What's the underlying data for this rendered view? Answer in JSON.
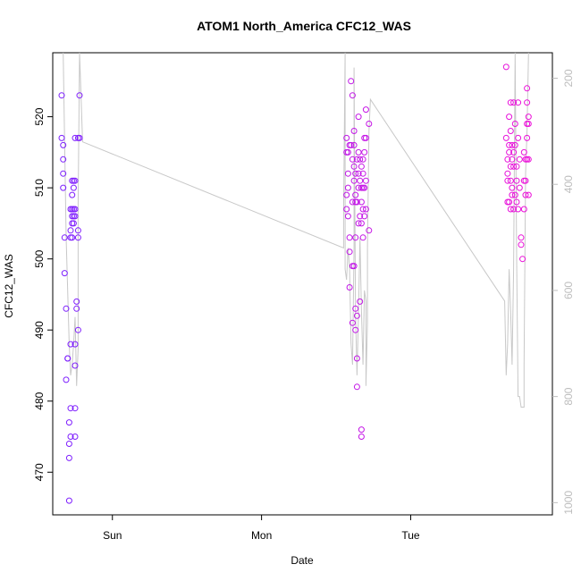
{
  "chart_data": {
    "type": "scatter",
    "title": "ATOM1 North_America CFC12_WAS",
    "xlabel": "Date",
    "ylabel": "CFC12_WAS",
    "x_ticks": [
      {
        "label": "Sun",
        "day": 1
      },
      {
        "label": "Mon",
        "day": 2
      },
      {
        "label": "Tue",
        "day": 3
      }
    ],
    "xlim_days": [
      0.6,
      3.95
    ],
    "y_ticks": [
      470,
      480,
      490,
      500,
      510,
      520
    ],
    "ylim": [
      464,
      529
    ],
    "y2_label": "",
    "y2_ticks": [
      200,
      400,
      600,
      800,
      1000
    ],
    "y2lim_top_to_bottom": [
      152,
      1023
    ],
    "grid": false,
    "legend": "none",
    "colors": {
      "early_points": "#7a1fff",
      "late_points": "#ee10d8",
      "pressure_line": "#c8c8c8",
      "axis": "#000000",
      "secondary_axis": "#bdbdbd"
    },
    "series": [
      {
        "points_day_value": [
          [
            0.66,
            523
          ],
          [
            0.66,
            517
          ],
          [
            0.67,
            516
          ],
          [
            0.67,
            514
          ],
          [
            0.67,
            512
          ],
          [
            0.67,
            510
          ],
          [
            0.68,
            503
          ],
          [
            0.68,
            498
          ],
          [
            0.69,
            493
          ],
          [
            0.69,
            483
          ],
          [
            0.7,
            486
          ],
          [
            0.7,
            486
          ],
          [
            0.71,
            477
          ],
          [
            0.71,
            474
          ],
          [
            0.71,
            472
          ],
          [
            0.71,
            466
          ],
          [
            0.72,
            507
          ],
          [
            0.72,
            504
          ],
          [
            0.72,
            503
          ],
          [
            0.72,
            488
          ],
          [
            0.72,
            479
          ],
          [
            0.72,
            475
          ],
          [
            0.73,
            511
          ],
          [
            0.73,
            509
          ],
          [
            0.73,
            507
          ],
          [
            0.73,
            506
          ],
          [
            0.73,
            505
          ],
          [
            0.73,
            503
          ],
          [
            0.74,
            507
          ],
          [
            0.74,
            506
          ],
          [
            0.74,
            505
          ],
          [
            0.74,
            510
          ],
          [
            0.74,
            511
          ],
          [
            0.75,
            517
          ],
          [
            0.75,
            511
          ],
          [
            0.75,
            506
          ],
          [
            0.75,
            507
          ],
          [
            0.75,
            488
          ],
          [
            0.75,
            485
          ],
          [
            0.75,
            479
          ],
          [
            0.75,
            475
          ],
          [
            0.76,
            493
          ],
          [
            0.76,
            494
          ],
          [
            0.77,
            517
          ],
          [
            0.77,
            504
          ],
          [
            0.77,
            503
          ],
          [
            0.77,
            490
          ],
          [
            0.78,
            523
          ],
          [
            0.78,
            517
          ]
        ]
      },
      {
        "points_day_value": [
          [
            2.57,
            515
          ],
          [
            2.57,
            517
          ],
          [
            2.57,
            509
          ],
          [
            2.57,
            507
          ],
          [
            2.58,
            515
          ],
          [
            2.58,
            512
          ],
          [
            2.58,
            510
          ],
          [
            2.58,
            506
          ],
          [
            2.59,
            516
          ],
          [
            2.59,
            503
          ],
          [
            2.59,
            501
          ],
          [
            2.59,
            496
          ],
          [
            2.6,
            525
          ],
          [
            2.6,
            516
          ],
          [
            2.61,
            523
          ],
          [
            2.61,
            514
          ],
          [
            2.61,
            508
          ],
          [
            2.61,
            499
          ],
          [
            2.61,
            491
          ],
          [
            2.62,
            518
          ],
          [
            2.62,
            516
          ],
          [
            2.62,
            513
          ],
          [
            2.62,
            511
          ],
          [
            2.62,
            499
          ],
          [
            2.63,
            509
          ],
          [
            2.63,
            512
          ],
          [
            2.63,
            508
          ],
          [
            2.63,
            503
          ],
          [
            2.63,
            493
          ],
          [
            2.63,
            490
          ],
          [
            2.64,
            514
          ],
          [
            2.64,
            508
          ],
          [
            2.64,
            486
          ],
          [
            2.64,
            482
          ],
          [
            2.64,
            492
          ],
          [
            2.65,
            520
          ],
          [
            2.65,
            515
          ],
          [
            2.65,
            512
          ],
          [
            2.65,
            510
          ],
          [
            2.65,
            505
          ],
          [
            2.66,
            514
          ],
          [
            2.66,
            511
          ],
          [
            2.66,
            506
          ],
          [
            2.66,
            494
          ],
          [
            2.67,
            476
          ],
          [
            2.67,
            475
          ],
          [
            2.67,
            513
          ],
          [
            2.67,
            510
          ],
          [
            2.67,
            508
          ],
          [
            2.67,
            505
          ],
          [
            2.68,
            514
          ],
          [
            2.68,
            512
          ],
          [
            2.68,
            510
          ],
          [
            2.68,
            507
          ],
          [
            2.68,
            503
          ],
          [
            2.69,
            515
          ],
          [
            2.69,
            510
          ],
          [
            2.69,
            506
          ],
          [
            2.69,
            517
          ],
          [
            2.7,
            521
          ],
          [
            2.7,
            517
          ],
          [
            2.7,
            507
          ],
          [
            2.7,
            511
          ],
          [
            2.72,
            519
          ],
          [
            2.72,
            504
          ],
          [
            3.64,
            527
          ],
          [
            3.64,
            517
          ],
          [
            3.65,
            514
          ],
          [
            3.65,
            512
          ],
          [
            3.65,
            511
          ],
          [
            3.65,
            508
          ],
          [
            3.66,
            520
          ],
          [
            3.66,
            516
          ],
          [
            3.66,
            515
          ],
          [
            3.66,
            508
          ],
          [
            3.67,
            522
          ],
          [
            3.67,
            518
          ],
          [
            3.67,
            513
          ],
          [
            3.67,
            511
          ],
          [
            3.67,
            507
          ],
          [
            3.68,
            516
          ],
          [
            3.68,
            514
          ],
          [
            3.68,
            510
          ],
          [
            3.68,
            509
          ],
          [
            3.69,
            522
          ],
          [
            3.69,
            515
          ],
          [
            3.69,
            513
          ],
          [
            3.69,
            507
          ],
          [
            3.7,
            519
          ],
          [
            3.7,
            516
          ],
          [
            3.7,
            509
          ],
          [
            3.71,
            511
          ],
          [
            3.71,
            513
          ],
          [
            3.71,
            508
          ],
          [
            3.72,
            522
          ],
          [
            3.72,
            517
          ],
          [
            3.72,
            507
          ],
          [
            3.73,
            514
          ],
          [
            3.73,
            510
          ],
          [
            3.74,
            503
          ],
          [
            3.74,
            502
          ],
          [
            3.75,
            500
          ],
          [
            3.76,
            515
          ],
          [
            3.76,
            511
          ],
          [
            3.76,
            507
          ],
          [
            3.77,
            514
          ],
          [
            3.77,
            511
          ],
          [
            3.77,
            509
          ],
          [
            3.78,
            524
          ],
          [
            3.78,
            522
          ],
          [
            3.78,
            519
          ],
          [
            3.78,
            517
          ],
          [
            3.78,
            514
          ],
          [
            3.79,
            520
          ],
          [
            3.79,
            519
          ],
          [
            3.79,
            509
          ],
          [
            3.79,
            514
          ]
        ]
      }
    ],
    "pressure_line_day_hpa": [
      [
        0.67,
        152
      ],
      [
        0.69,
        500
      ],
      [
        0.71,
        700
      ],
      [
        0.72,
        760
      ],
      [
        0.73,
        740
      ],
      [
        0.74,
        700
      ],
      [
        0.75,
        650
      ],
      [
        0.76,
        780
      ],
      [
        0.77,
        710
      ],
      [
        0.77,
        440
      ],
      [
        0.78,
        152
      ],
      [
        0.8,
        320
      ],
      [
        2.55,
        520
      ],
      [
        2.55,
        450
      ],
      [
        2.56,
        152
      ],
      [
        2.56,
        560
      ],
      [
        2.57,
        580
      ],
      [
        2.58,
        520
      ],
      [
        2.59,
        560
      ],
      [
        2.6,
        700
      ],
      [
        2.61,
        740
      ],
      [
        2.62,
        520
      ],
      [
        2.62,
        180
      ],
      [
        2.63,
        640
      ],
      [
        2.64,
        760
      ],
      [
        2.65,
        640
      ],
      [
        2.66,
        500
      ],
      [
        2.67,
        640
      ],
      [
        2.68,
        740
      ],
      [
        2.69,
        600
      ],
      [
        2.7,
        620
      ],
      [
        2.7,
        780
      ],
      [
        2.71,
        660
      ],
      [
        2.71,
        520
      ],
      [
        2.72,
        300
      ],
      [
        2.73,
        240
      ],
      [
        3.63,
        620
      ],
      [
        3.64,
        760
      ],
      [
        3.65,
        700
      ],
      [
        3.66,
        560
      ],
      [
        3.67,
        640
      ],
      [
        3.68,
        740
      ],
      [
        3.69,
        560
      ],
      [
        3.7,
        152
      ],
      [
        3.71,
        540
      ],
      [
        3.72,
        800
      ],
      [
        3.73,
        800
      ],
      [
        3.74,
        820
      ],
      [
        3.76,
        820
      ],
      [
        3.76,
        740
      ],
      [
        3.77,
        380
      ],
      [
        3.78,
        300
      ],
      [
        3.79,
        152
      ]
    ]
  }
}
